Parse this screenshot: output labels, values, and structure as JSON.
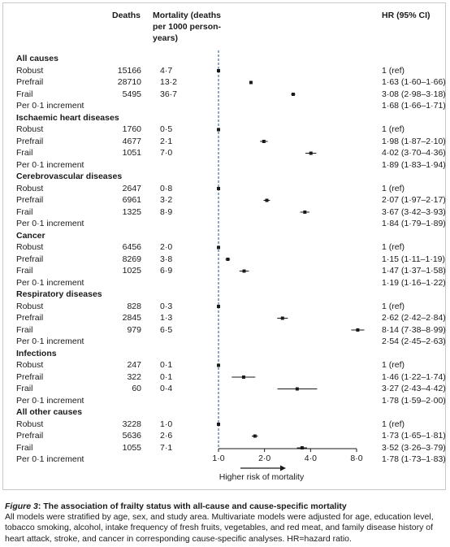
{
  "headers": {
    "deaths": "Deaths",
    "mortality_line1": "Mortality (deaths",
    "mortality_line2": "per 1000 person-",
    "mortality_line3": "years)",
    "hr": "HR (95% CI)"
  },
  "rows": [
    {
      "type": "group",
      "label": "All causes"
    },
    {
      "type": "row",
      "label": "Robust",
      "deaths": "15166",
      "rate": "4·7",
      "hr_text": "1 (ref)",
      "hr": 1.0,
      "lo": 1.0,
      "hi": 1.0
    },
    {
      "type": "row",
      "label": "Prefrail",
      "deaths": "28710",
      "rate": "13·2",
      "hr_text": "1·63 (1·60–1·66)",
      "hr": 1.63,
      "lo": 1.6,
      "hi": 1.66
    },
    {
      "type": "row",
      "label": "Frail",
      "deaths": "5495",
      "rate": "36·7",
      "hr_text": "3·08 (2·98–3·18)",
      "hr": 3.08,
      "lo": 2.98,
      "hi": 3.18
    },
    {
      "type": "row",
      "label": "Per 0·1 increment",
      "deaths": "",
      "rate": "",
      "hr_text": "1·68 (1·66–1·71)"
    },
    {
      "type": "group",
      "label": "Ischaemic heart diseases"
    },
    {
      "type": "row",
      "label": "Robust",
      "deaths": "1760",
      "rate": "0·5",
      "hr_text": "1 (ref)",
      "hr": 1.0,
      "lo": 1.0,
      "hi": 1.0
    },
    {
      "type": "row",
      "label": "Prefrail",
      "deaths": "4677",
      "rate": "2·1",
      "hr_text": "1·98 (1·87–2·10)",
      "hr": 1.98,
      "lo": 1.87,
      "hi": 2.1
    },
    {
      "type": "row",
      "label": "Frail",
      "deaths": "1051",
      "rate": "7·0",
      "hr_text": "4·02 (3·70–4·36)",
      "hr": 4.02,
      "lo": 3.7,
      "hi": 4.36
    },
    {
      "type": "row",
      "label": "Per 0·1 increment",
      "deaths": "",
      "rate": "",
      "hr_text": "1·89 (1·83–1·94)"
    },
    {
      "type": "group",
      "label": "Cerebrovascular diseases"
    },
    {
      "type": "row",
      "label": "Robust",
      "deaths": "2647",
      "rate": "0·8",
      "hr_text": "1 (ref)",
      "hr": 1.0,
      "lo": 1.0,
      "hi": 1.0
    },
    {
      "type": "row",
      "label": "Prefrail",
      "deaths": "6961",
      "rate": "3·2",
      "hr_text": "2·07 (1·97–2·17)",
      "hr": 2.07,
      "lo": 1.97,
      "hi": 2.17
    },
    {
      "type": "row",
      "label": "Frail",
      "deaths": "1325",
      "rate": "8·9",
      "hr_text": "3·67 (3·42–3·93)",
      "hr": 3.67,
      "lo": 3.42,
      "hi": 3.93
    },
    {
      "type": "row",
      "label": "Per 0·1 increment",
      "deaths": "",
      "rate": "",
      "hr_text": "1·84 (1·79–1·89)"
    },
    {
      "type": "group",
      "label": "Cancer"
    },
    {
      "type": "row",
      "label": "Robust",
      "deaths": "6456",
      "rate": "2·0",
      "hr_text": "1 (ref)",
      "hr": 1.0,
      "lo": 1.0,
      "hi": 1.0
    },
    {
      "type": "row",
      "label": "Prefrail",
      "deaths": "8269",
      "rate": "3·8",
      "hr_text": "1·15 (1·11–1·19)",
      "hr": 1.15,
      "lo": 1.11,
      "hi": 1.19
    },
    {
      "type": "row",
      "label": "Frail",
      "deaths": "1025",
      "rate": "6·9",
      "hr_text": "1·47 (1·37–1·58)",
      "hr": 1.47,
      "lo": 1.37,
      "hi": 1.58
    },
    {
      "type": "row",
      "label": "Per 0·1 increment",
      "deaths": "",
      "rate": "",
      "hr_text": "1·19 (1·16–1·22)"
    },
    {
      "type": "group",
      "label": "Respiratory diseases"
    },
    {
      "type": "row",
      "label": "Robust",
      "deaths": "828",
      "rate": "0·3",
      "hr_text": "1 (ref)",
      "hr": 1.0,
      "lo": 1.0,
      "hi": 1.0
    },
    {
      "type": "row",
      "label": "Prefrail",
      "deaths": "2845",
      "rate": "1·3",
      "hr_text": "2·62 (2·42–2·84)",
      "hr": 2.62,
      "lo": 2.42,
      "hi": 2.84
    },
    {
      "type": "row",
      "label": "Frail",
      "deaths": "979",
      "rate": "6·5",
      "hr_text": "8·14 (7·38–8·99)",
      "hr": 8.14,
      "lo": 7.38,
      "hi": 8.99
    },
    {
      "type": "row",
      "label": "Per 0·1 increment",
      "deaths": "",
      "rate": "",
      "hr_text": "2·54 (2·45–2·63)"
    },
    {
      "type": "group",
      "label": "Infections"
    },
    {
      "type": "row",
      "label": "Robust",
      "deaths": "247",
      "rate": "0·1",
      "hr_text": "1 (ref)",
      "hr": 1.0,
      "lo": 1.0,
      "hi": 1.0
    },
    {
      "type": "row",
      "label": "Prefrail",
      "deaths": "322",
      "rate": "0·1",
      "hr_text": "1·46 (1·22–1·74)",
      "hr": 1.46,
      "lo": 1.22,
      "hi": 1.74
    },
    {
      "type": "row",
      "label": "Frail",
      "deaths": "60",
      "rate": "0·4",
      "hr_text": "3·27 (2·43–4·42)",
      "hr": 3.27,
      "lo": 2.43,
      "hi": 4.42
    },
    {
      "type": "row",
      "label": "Per 0·1 increment",
      "deaths": "",
      "rate": "",
      "hr_text": "1·78 (1·59–2·00)"
    },
    {
      "type": "group",
      "label": "All other causes"
    },
    {
      "type": "row",
      "label": "Robust",
      "deaths": "3228",
      "rate": "1·0",
      "hr_text": "1 (ref)",
      "hr": 1.0,
      "lo": 1.0,
      "hi": 1.0
    },
    {
      "type": "row",
      "label": "Prefrail",
      "deaths": "5636",
      "rate": "2·6",
      "hr_text": "1·73 (1·65–1·81)",
      "hr": 1.73,
      "lo": 1.65,
      "hi": 1.81
    },
    {
      "type": "row",
      "label": "Frail",
      "deaths": "1055",
      "rate": "7·1",
      "hr_text": "3·52 (3·26–3·79)",
      "hr": 3.52,
      "lo": 3.26,
      "hi": 3.79
    },
    {
      "type": "row",
      "label": "Per 0·1 increment",
      "deaths": "",
      "rate": "",
      "hr_text": "1·78 (1·73–1·83)"
    }
  ],
  "chart_data": {
    "type": "scatter",
    "subtype": "forest",
    "x_scale": "log",
    "xlim": [
      1.0,
      8.0
    ],
    "x_ticks": [
      1.0,
      2.0,
      4.0,
      8.0
    ],
    "x_tick_labels": [
      "1·0",
      "2·0",
      "4·0",
      "8·0"
    ],
    "reference_line": 1.0,
    "xlabel": "Higher risk of mortality"
  },
  "caption": {
    "title_italic": "Figure 3",
    "title_rest": ": The association of frailty status with all-cause and cause-specific mortality",
    "text": "All models were stratified by age, sex, and study area. Multivariate models were adjusted for age, education level, tobacco smoking, alcohol, intake frequency of fresh fruits, vegetables, and red meat, and family disease history of heart attack, stroke, and cancer in corresponding cause-specific analyses. HR=hazard ratio."
  }
}
